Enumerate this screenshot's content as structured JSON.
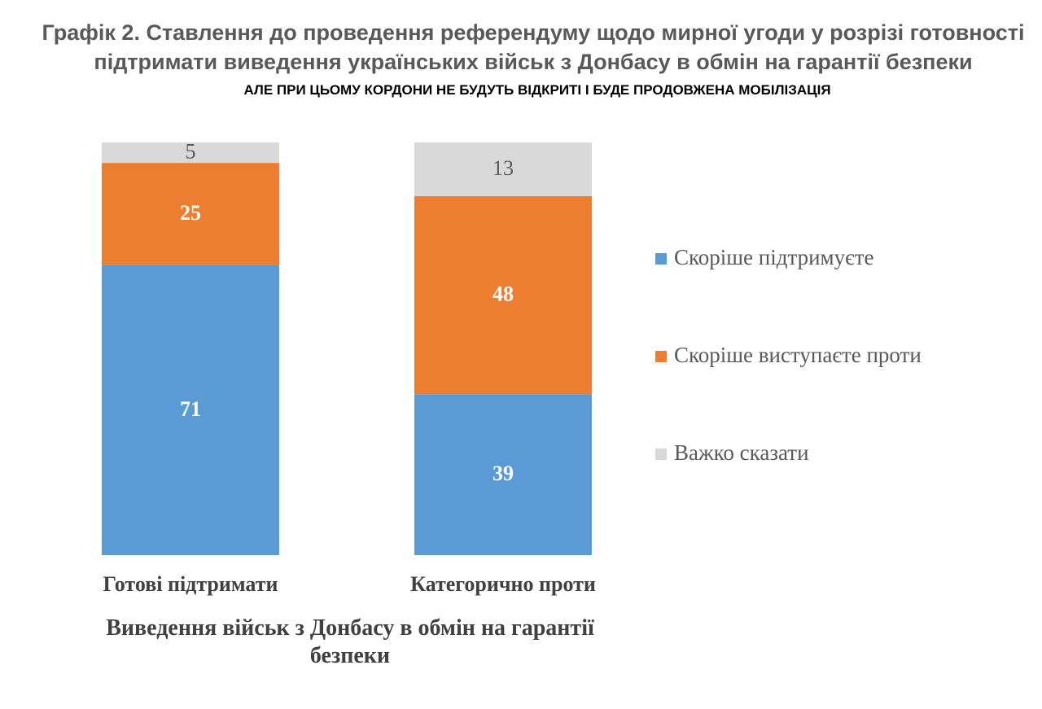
{
  "chart_data": {
    "type": "bar",
    "stacked": true,
    "normalized": true,
    "title": "Графік 2. Ставлення до проведення референдуму щодо мирної угоди у розрізі готовності підтримати виведення українських військ з Донбасу в обмін на гарантії безпеки",
    "subtitle": "АЛЕ ПРИ ЦЬОМУ КОРДОНИ НЕ БУДУТЬ ВІДКРИТІ І БУДЕ ПРОДОВЖЕНА МОБІЛІЗАЦІЯ",
    "x_label": "Виведення військ з Донбасу в обмін на гарантії безпеки",
    "categories": [
      "Готові підтримати",
      "Категорично проти"
    ],
    "series": [
      {
        "name": "Скоріше підтримуєте",
        "color": "#5b9bd5",
        "values": [
          71,
          39
        ]
      },
      {
        "name": "Скоріше виступаєте проти",
        "color": "#ed7d31",
        "values": [
          25,
          48
        ]
      },
      {
        "name": "Важко сказати",
        "color": "#d9d9d9",
        "values": [
          5,
          13
        ]
      }
    ],
    "legend": "right"
  }
}
